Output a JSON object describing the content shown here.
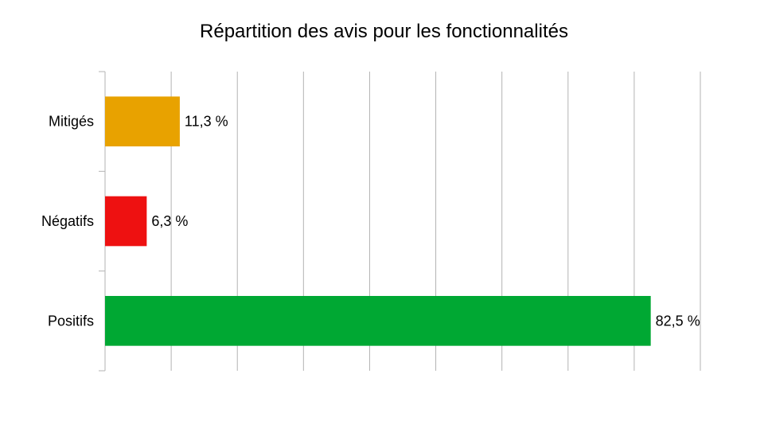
{
  "chart_data": {
    "type": "bar",
    "orientation": "horizontal",
    "title": "Répartition des avis pour les fonctionnalités",
    "categories": [
      "Mitigés",
      "Négatifs",
      "Positifs"
    ],
    "values": [
      11.3,
      6.3,
      82.5
    ],
    "value_labels": [
      "11,3 %",
      "6,3 %",
      "82,5 %"
    ],
    "colors": [
      "#e8a200",
      "#ee1111",
      "#00a833"
    ],
    "xlim": [
      0,
      90
    ],
    "x_major_step": 10,
    "grid": true,
    "legend": "none"
  }
}
